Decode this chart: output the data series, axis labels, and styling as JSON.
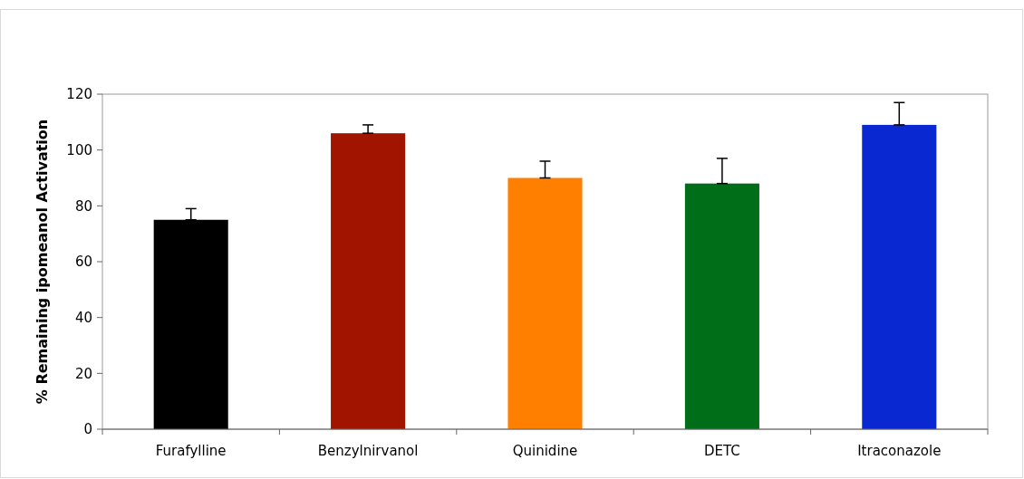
{
  "chart_data": {
    "type": "bar",
    "ylabel": "% Remaining ipomeanol Activation",
    "categories": [
      "Furafylline",
      "Benzylnirvanol",
      "Quinidine",
      "DETC",
      "Itraconazole"
    ],
    "values": [
      75,
      106,
      90,
      88,
      109
    ],
    "colors": [
      "#000000",
      "#a01400",
      "#ff7f00",
      "#006e19",
      "#0a28d2"
    ],
    "errors": [
      [
        75,
        79
      ],
      [
        106,
        109
      ],
      [
        90,
        96
      ],
      [
        88,
        97
      ],
      [
        109,
        117
      ]
    ],
    "ylim": [
      0,
      120
    ],
    "yticks": [
      0,
      20,
      40,
      60,
      80,
      100,
      120
    ],
    "grid": false
  }
}
